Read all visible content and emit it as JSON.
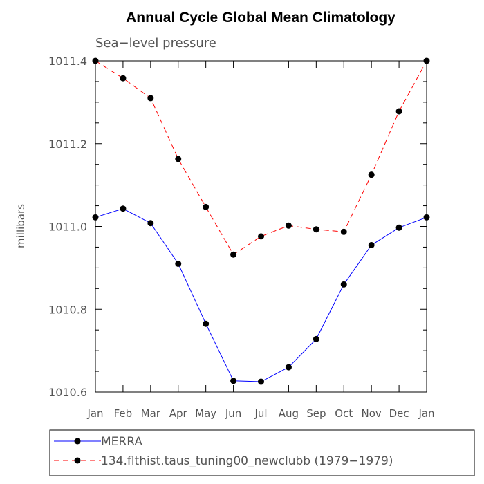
{
  "chart_data": {
    "type": "line",
    "title": "Annual Cycle Global Mean Climatology",
    "subtitle": "Sea−level pressure",
    "xlabel": "",
    "ylabel": "millibars",
    "categories": [
      "Jan",
      "Feb",
      "Mar",
      "Apr",
      "May",
      "Jun",
      "Jul",
      "Aug",
      "Sep",
      "Oct",
      "Nov",
      "Dec",
      "Jan"
    ],
    "ylim": [
      1010.6,
      1011.4
    ],
    "yticks": [
      1010.6,
      1010.8,
      1011.0,
      1011.2,
      1011.4
    ],
    "ytick_labels": [
      "1010.6",
      "1010.8",
      "1011.0",
      "1011.2",
      "1011.4"
    ],
    "grid": false,
    "legend": "bottom",
    "series": [
      {
        "name": "MERRA",
        "color": "#0000ff",
        "dash": "solid",
        "marker": "dot",
        "values": [
          1011.022,
          1011.043,
          1011.008,
          1010.91,
          1010.765,
          1010.627,
          1010.625,
          1010.66,
          1010.728,
          1010.86,
          1010.955,
          1010.997,
          1011.022
        ]
      },
      {
        "name": "134.flthist.taus_tuning00_newclubb (1979−1979)",
        "color": "#ff0000",
        "dash": "dashed",
        "marker": "dot",
        "values": [
          1011.4,
          1011.358,
          1011.31,
          1011.163,
          1011.047,
          1010.932,
          1010.976,
          1011.002,
          1010.993,
          1010.987,
          1011.125,
          1011.278,
          1011.4
        ]
      }
    ]
  }
}
